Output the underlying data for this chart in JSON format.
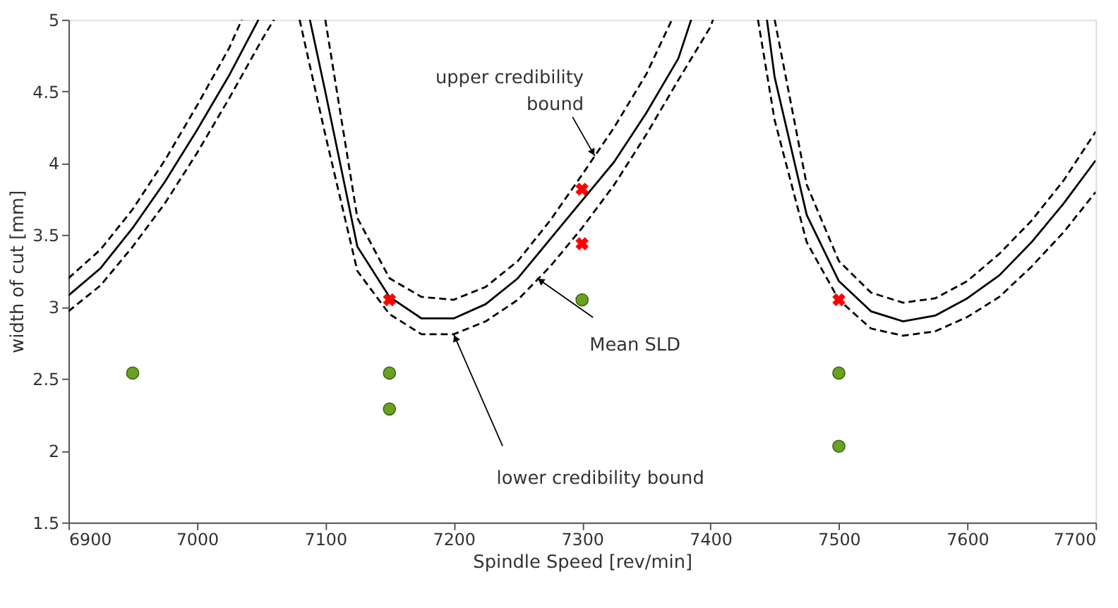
{
  "chart_data": {
    "type": "line",
    "xlabel": "Spindle Speed [rev/min]",
    "ylabel": "width of cut [mm]",
    "xlim": [
      6900,
      7700
    ],
    "ylim": [
      1.5,
      5
    ],
    "xticks": [
      6900,
      7000,
      7100,
      7200,
      7300,
      7400,
      7500,
      7600,
      7700
    ],
    "yticks": [
      1.5,
      2,
      2.5,
      3,
      3.5,
      4,
      4.5,
      5
    ],
    "grid": false,
    "series": [
      {
        "color": "#000000",
        "line_style": "solid",
        "x": [
          6900,
          6925,
          6950,
          6975,
          7000,
          7025,
          7048
        ],
        "values": [
          3.08,
          3.27,
          3.55,
          3.87,
          4.23,
          4.61,
          5.0
        ]
      },
      {
        "color": "#000000",
        "line_style": "dashed",
        "x": [
          6900,
          6925,
          6950,
          6975,
          7000,
          7025,
          7035
        ],
        "values": [
          3.2,
          3.4,
          3.68,
          4.02,
          4.4,
          4.8,
          5.0
        ]
      },
      {
        "color": "#000000",
        "line_style": "dashed",
        "x": [
          6900,
          6925,
          6950,
          6975,
          7000,
          7025,
          7050,
          7060
        ],
        "values": [
          2.97,
          3.15,
          3.42,
          3.72,
          4.07,
          4.45,
          4.85,
          5.0
        ]
      },
      {
        "color": "#000000",
        "line_style": "solid",
        "x": [
          7088,
          7100,
          7125,
          7150,
          7175,
          7200,
          7225,
          7250,
          7275,
          7300,
          7325,
          7350,
          7375,
          7385
        ],
        "values": [
          5.0,
          4.5,
          3.42,
          3.07,
          2.92,
          2.92,
          3.02,
          3.2,
          3.47,
          3.74,
          4.01,
          4.35,
          4.73,
          5.0
        ]
      },
      {
        "color": "#000000",
        "line_style": "dashed",
        "x": [
          7100,
          7125,
          7150,
          7175,
          7200,
          7225,
          7250,
          7275,
          7300,
          7325,
          7350,
          7370
        ],
        "values": [
          5.0,
          3.62,
          3.2,
          3.07,
          3.05,
          3.14,
          3.32,
          3.6,
          3.92,
          4.25,
          4.62,
          5.0
        ]
      },
      {
        "color": "#000000",
        "line_style": "dashed",
        "x": [
          7080,
          7100,
          7125,
          7150,
          7175,
          7200,
          7225,
          7250,
          7275,
          7300,
          7325,
          7350,
          7375,
          7400,
          7402
        ],
        "values": [
          5.0,
          4.2,
          3.25,
          2.95,
          2.81,
          2.81,
          2.9,
          3.05,
          3.28,
          3.55,
          3.85,
          4.2,
          4.58,
          4.95,
          5.0
        ]
      },
      {
        "color": "#000000",
        "line_style": "solid",
        "x": [
          7444,
          7450,
          7475,
          7500,
          7525,
          7550,
          7575,
          7600,
          7625,
          7650,
          7675,
          7700
        ],
        "values": [
          5.0,
          4.6,
          3.64,
          3.18,
          2.97,
          2.9,
          2.94,
          3.06,
          3.22,
          3.45,
          3.72,
          4.02
        ]
      },
      {
        "color": "#000000",
        "line_style": "dashed",
        "x": [
          7450,
          7475,
          7500,
          7525,
          7550,
          7575,
          7600,
          7625,
          7650,
          7675,
          7700
        ],
        "values": [
          5.0,
          3.85,
          3.32,
          3.1,
          3.03,
          3.06,
          3.18,
          3.37,
          3.6,
          3.88,
          4.22
        ]
      },
      {
        "color": "#000000",
        "line_style": "dashed",
        "x": [
          7437,
          7450,
          7475,
          7500,
          7525,
          7550,
          7575,
          7600,
          7625,
          7650,
          7675,
          7700
        ],
        "values": [
          5.0,
          4.3,
          3.45,
          3.05,
          2.85,
          2.8,
          2.83,
          2.93,
          3.07,
          3.28,
          3.52,
          3.8
        ]
      },
      {
        "type": "scatter",
        "color": "#6aa121",
        "marker": "circle",
        "x": [
          6950,
          7150,
          7150,
          7300,
          7500,
          7500
        ],
        "values": [
          2.54,
          2.54,
          2.29,
          3.05,
          2.54,
          2.03
        ]
      },
      {
        "type": "scatter",
        "color": "#ff0000",
        "marker": "cross",
        "x": [
          7150,
          7300,
          7300,
          7500
        ],
        "values": [
          3.05,
          3.82,
          3.44,
          3.05
        ]
      }
    ],
    "annotations": [
      {
        "text": "upper credibility bound",
        "x": 7310,
        "y": 4.05
      },
      {
        "text": "Mean SLD",
        "x": 7265,
        "y": 3.2
      },
      {
        "text": "lower credibility bound",
        "x": 7200,
        "y": 2.81
      }
    ]
  }
}
